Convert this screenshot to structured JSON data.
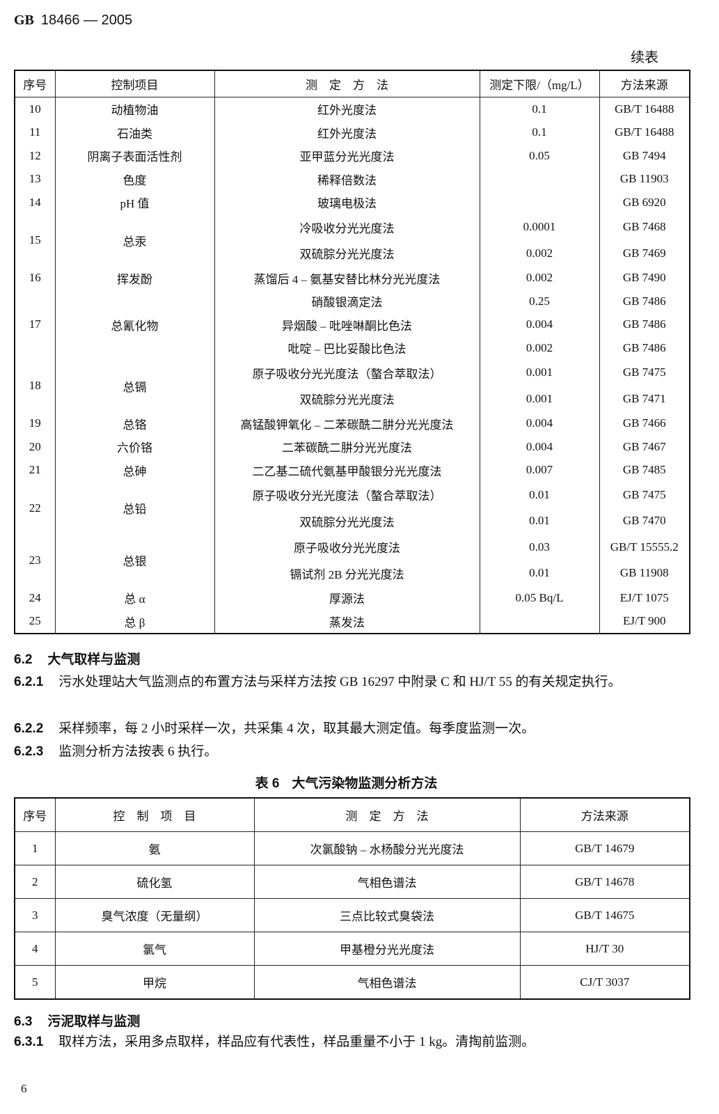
{
  "header": {
    "standard_prefix": "GB",
    "standard_number": "18466 — 2005"
  },
  "table5_cont": {
    "continued_label": "续表",
    "columns": [
      "序号",
      "控制项目",
      "测　定　方　法",
      "测定下限/（mg/L）",
      "方法来源"
    ],
    "groups": [
      {
        "id": "10",
        "item": "动植物油",
        "rows": [
          {
            "method": "红外光度法",
            "limit": "0.1",
            "source": "GB/T 16488"
          }
        ]
      },
      {
        "id": "11",
        "item": "石油类",
        "rows": [
          {
            "method": "红外光度法",
            "limit": "0.1",
            "source": "GB/T 16488"
          }
        ]
      },
      {
        "id": "12",
        "item": "阴离子表面活性剂",
        "rows": [
          {
            "method": "亚甲蓝分光光度法",
            "limit": "0.05",
            "source": "GB 7494"
          }
        ]
      },
      {
        "id": "13",
        "item": "色度",
        "rows": [
          {
            "method": "稀释倍数法",
            "limit": "",
            "source": "GB 11903"
          }
        ]
      },
      {
        "id": "14",
        "item": "pH 值",
        "rows": [
          {
            "method": "玻璃电极法",
            "limit": "",
            "source": "GB 6920"
          }
        ]
      },
      {
        "id": "15",
        "item": "总汞",
        "rows": [
          {
            "method": "冷吸收分光光度法",
            "limit": "0.0001",
            "source": "GB 7468"
          },
          {
            "method": "双硫腙分光光度法",
            "limit": "0.002",
            "source": "GB 7469"
          }
        ]
      },
      {
        "id": "16",
        "item": "挥发酚",
        "rows": [
          {
            "method": "蒸馏后 4 – 氨基安替比林分光光度法",
            "limit": "0.002",
            "source": "GB 7490"
          }
        ]
      },
      {
        "id": "17",
        "item": "总氰化物",
        "rows": [
          {
            "method": "硝酸银滴定法",
            "limit": "0.25",
            "source": "GB 7486"
          },
          {
            "method": "异烟酸 – 吡唑啉酮比色法",
            "limit": "0.004",
            "source": "GB 7486"
          },
          {
            "method": "吡啶 – 巴比妥酸比色法",
            "limit": "0.002",
            "source": "GB 7486"
          }
        ]
      },
      {
        "id": "18",
        "item": "总镉",
        "rows": [
          {
            "method": "原子吸收分光光度法（螯合萃取法）",
            "limit": "0.001",
            "source": "GB 7475"
          },
          {
            "method": "双硫腙分光光度法",
            "limit": "0.001",
            "source": "GB 7471"
          }
        ]
      },
      {
        "id": "19",
        "item": "总铬",
        "rows": [
          {
            "method": "高锰酸钾氧化 – 二苯碳酰二肼分光光度法",
            "limit": "0.004",
            "source": "GB 7466"
          }
        ]
      },
      {
        "id": "20",
        "item": "六价铬",
        "rows": [
          {
            "method": "二苯碳酰二肼分光光度法",
            "limit": "0.004",
            "source": "GB 7467"
          }
        ]
      },
      {
        "id": "21",
        "item": "总砷",
        "rows": [
          {
            "method": "二乙基二硫代氨基甲酸银分光光度法",
            "limit": "0.007",
            "source": "GB 7485"
          }
        ]
      },
      {
        "id": "22",
        "item": "总铅",
        "rows": [
          {
            "method": "原子吸收分光光度法（螯合萃取法）",
            "limit": "0.01",
            "source": "GB 7475"
          },
          {
            "method": "双硫腙分光光度法",
            "limit": "0.01",
            "source": "GB 7470"
          }
        ]
      },
      {
        "id": "23",
        "item": "总银",
        "rows": [
          {
            "method": "原子吸收分光光度法",
            "limit": "0.03",
            "source": "GB/T 15555.2"
          },
          {
            "method": "镉试剂 2B 分光光度法",
            "limit": "0.01",
            "source": "GB 11908"
          }
        ]
      },
      {
        "id": "24",
        "item": "总 α",
        "rows": [
          {
            "method": "厚源法",
            "limit": "0.05 Bq/L",
            "source": "EJ/T 1075"
          }
        ]
      },
      {
        "id": "25",
        "item": "总 β",
        "rows": [
          {
            "method": "蒸发法",
            "limit": "",
            "source": "EJ/T 900"
          }
        ]
      }
    ]
  },
  "section_6_2": {
    "number": "6.2",
    "title": "大气取样与监测",
    "paras": [
      {
        "number": "6.2.1",
        "text": "污水处理站大气监测点的布置方法与采样方法按 GB 16297 中附录 C 和 HJ/T 55 的有关规定执行。"
      },
      {
        "number": "6.2.2",
        "text": "采样频率，每 2 小时采样一次，共采集 4 次，取其最大测定值。每季度监测一次。"
      },
      {
        "number": "6.2.3",
        "text": "监测分析方法按表 6 执行。"
      }
    ]
  },
  "table6": {
    "caption_number": "表 6",
    "caption_title": "大气污染物监测分析方法",
    "columns": [
      "序号",
      "控　制　项　目",
      "测　定　方　法",
      "方法来源"
    ],
    "rows": [
      [
        "1",
        "氨",
        "次氯酸钠 – 水杨酸分光光度法",
        "GB/T 14679"
      ],
      [
        "2",
        "硫化氢",
        "气相色谱法",
        "GB/T 14678"
      ],
      [
        "3",
        "臭气浓度（无量纲）",
        "三点比较式臭袋法",
        "GB/T 14675"
      ],
      [
        "4",
        "氯气",
        "甲基橙分光光度法",
        "HJ/T 30"
      ],
      [
        "5",
        "甲烷",
        "气相色谱法",
        "CJ/T 3037"
      ]
    ]
  },
  "section_6_3": {
    "number": "6.3",
    "title": "污泥取样与监测",
    "paras": [
      {
        "number": "6.3.1",
        "text": "取样方法，采用多点取样，样品应有代表性，样品重量不小于 1 kg。清掏前监测。"
      }
    ]
  },
  "page_number": "6"
}
